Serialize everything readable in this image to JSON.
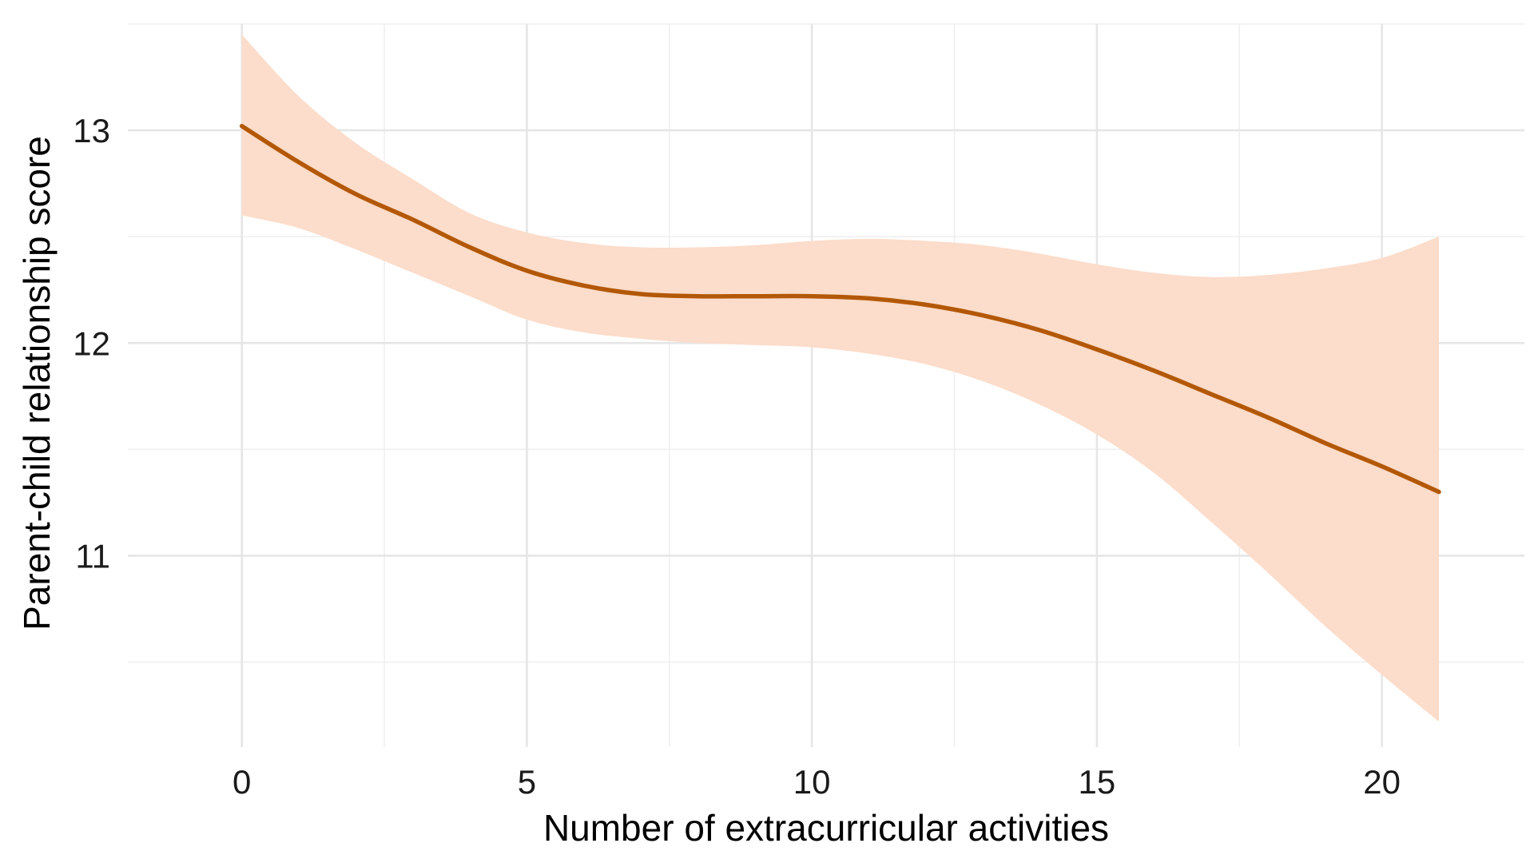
{
  "chart_data": {
    "type": "line",
    "title": "",
    "xlabel": "Number of extracurricular activities",
    "ylabel": "Parent-child relationship score",
    "xlim": [
      -2,
      22.5
    ],
    "ylim": [
      10.1,
      13.5
    ],
    "x_ticks": [
      0,
      5,
      10,
      15,
      20
    ],
    "x_minor_ticks": [
      2.5,
      7.5,
      12.5,
      17.5
    ],
    "x_tick_labels": [
      "0",
      "5",
      "10",
      "15",
      "20"
    ],
    "y_ticks": [
      11,
      12,
      13
    ],
    "y_minor_ticks": [
      10.5,
      11.5,
      12.5,
      13.5
    ],
    "y_tick_labels": [
      "11",
      "12",
      "13"
    ],
    "grid": true,
    "legend": "none",
    "colors": {
      "line": "#b35806",
      "band": "#fcdcca",
      "grid_major": "#e6e6e6",
      "grid_minor": "#efefef",
      "background": "#ffffff"
    },
    "series": [
      {
        "x": [
          0,
          1,
          2,
          3,
          4,
          5,
          6,
          7,
          8,
          9,
          10,
          11,
          12,
          13,
          14,
          15,
          16,
          17,
          18,
          19,
          20,
          21
        ],
        "y": [
          13.02,
          12.85,
          12.7,
          12.58,
          12.45,
          12.34,
          12.27,
          12.23,
          12.22,
          12.22,
          12.22,
          12.21,
          12.18,
          12.13,
          12.06,
          11.97,
          11.87,
          11.76,
          11.65,
          11.53,
          11.42,
          11.3
        ],
        "ci_lower": [
          12.6,
          12.54,
          12.44,
          12.33,
          12.22,
          12.11,
          12.05,
          12.02,
          12.0,
          11.99,
          11.98,
          11.95,
          11.9,
          11.82,
          11.71,
          11.57,
          11.39,
          11.16,
          10.92,
          10.67,
          10.44,
          10.22
        ],
        "ci_upper": [
          13.45,
          13.16,
          12.94,
          12.77,
          12.61,
          12.52,
          12.47,
          12.45,
          12.45,
          12.46,
          12.48,
          12.49,
          12.48,
          12.46,
          12.42,
          12.37,
          12.33,
          12.31,
          12.32,
          12.35,
          12.4,
          12.5
        ]
      }
    ]
  }
}
